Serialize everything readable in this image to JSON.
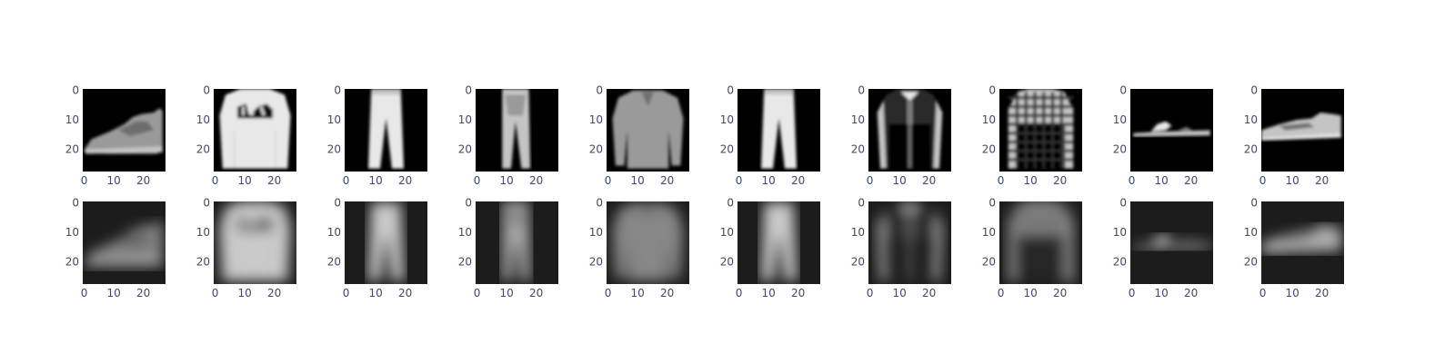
{
  "chart_data": {
    "type": "heatmap",
    "description_rows": [
      "original",
      "reconstruction"
    ],
    "colorscale": "gray",
    "image_size": 28,
    "x_ticks": [
      0,
      10,
      20
    ],
    "y_ticks": [
      0,
      10,
      20
    ],
    "xlim": [
      0,
      27
    ],
    "ylim": [
      27,
      0
    ],
    "grid": false,
    "legend": "none",
    "rows": [
      {
        "row": "top",
        "panels": [
          {
            "shape": "sneaker",
            "variant": "original"
          },
          {
            "shape": "sweater",
            "variant": "original"
          },
          {
            "shape": "trouser",
            "variant": "original"
          },
          {
            "shape": "trouser-thin",
            "variant": "original"
          },
          {
            "shape": "pullover",
            "variant": "original"
          },
          {
            "shape": "trouser",
            "variant": "original"
          },
          {
            "shape": "coat",
            "variant": "original"
          },
          {
            "shape": "shirt",
            "variant": "original"
          },
          {
            "shape": "sandal",
            "variant": "original"
          },
          {
            "shape": "sneaker-low",
            "variant": "original"
          }
        ]
      },
      {
        "row": "bottom",
        "panels": [
          {
            "shape": "sneaker",
            "variant": "reconstruction"
          },
          {
            "shape": "sweater",
            "variant": "reconstruction"
          },
          {
            "shape": "trouser",
            "variant": "reconstruction"
          },
          {
            "shape": "trouser-thin",
            "variant": "reconstruction"
          },
          {
            "shape": "pullover",
            "variant": "reconstruction"
          },
          {
            "shape": "trouser",
            "variant": "reconstruction"
          },
          {
            "shape": "coat",
            "variant": "reconstruction"
          },
          {
            "shape": "shirt",
            "variant": "reconstruction"
          },
          {
            "shape": "sandal",
            "variant": "reconstruction"
          },
          {
            "shape": "sneaker-low",
            "variant": "reconstruction"
          }
        ]
      }
    ]
  }
}
